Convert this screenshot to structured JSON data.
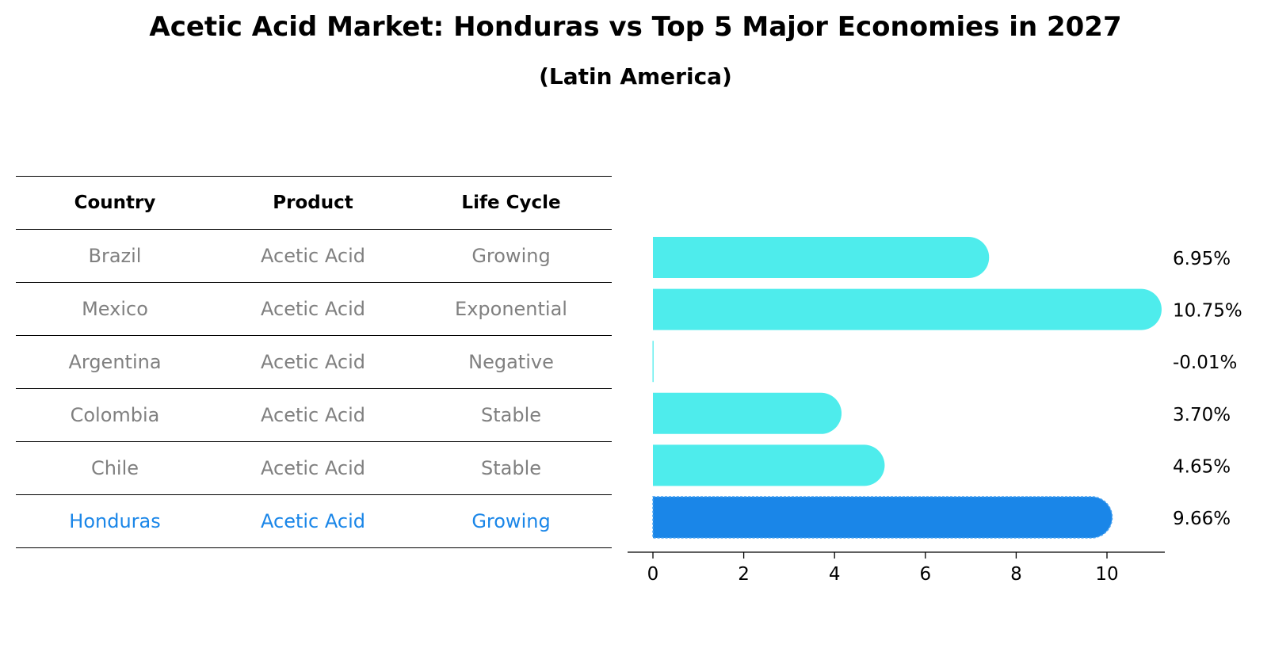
{
  "title": "Acetic Acid Market: Honduras vs Top 5 Major Economies in 2027",
  "subtitle": "(Latin America)",
  "table": {
    "headers": [
      "Country",
      "Product",
      "Life Cycle"
    ],
    "rows": [
      [
        "Brazil",
        "Acetic Acid",
        "Growing"
      ],
      [
        "Mexico",
        "Acetic Acid",
        "Exponential"
      ],
      [
        "Argentina",
        "Acetic Acid",
        "Negative"
      ],
      [
        "Colombia",
        "Acetic Acid",
        "Stable"
      ],
      [
        "Chile",
        "Acetic Acid",
        "Stable"
      ],
      [
        "Honduras",
        "Acetic Acid",
        "Growing"
      ]
    ],
    "highlight_row": 5,
    "highlight_color": "#1a86e8",
    "text_color": "#808080"
  },
  "chart_data": {
    "type": "bar",
    "orientation": "horizontal",
    "categories": [
      "Brazil",
      "Mexico",
      "Argentina",
      "Colombia",
      "Chile",
      "Honduras"
    ],
    "values": [
      6.95,
      10.75,
      -0.01,
      3.7,
      4.65,
      9.66
    ],
    "value_labels": [
      "6.95%",
      "10.75%",
      "-0.01%",
      "3.70%",
      "4.65%",
      "9.66%"
    ],
    "xticks": [
      0,
      2,
      4,
      6,
      8,
      10
    ],
    "xlim": [
      -0.55,
      11.3
    ],
    "bar_color": "#4eecec",
    "highlight_color": "#1a86e8",
    "highlight_index": 5,
    "grid": false
  }
}
